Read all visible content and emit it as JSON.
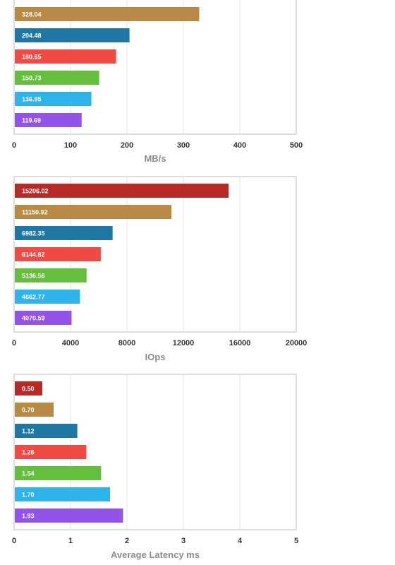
{
  "chart_data": [
    {
      "type": "bar",
      "orientation": "horizontal",
      "xlabel": "MB/s",
      "xlim": [
        0,
        500
      ],
      "xticks": [
        0,
        100,
        200,
        300,
        400,
        500
      ],
      "grid": true,
      "values": [
        328.04,
        204.48,
        180.65,
        150.73,
        136.95,
        119.69
      ],
      "labels": [
        "328.04",
        "204.48",
        "180.65",
        "150.73",
        "136.95",
        "119.69"
      ],
      "colors": [
        "#b88a44",
        "#1f77a4",
        "#f04a44",
        "#63bf3c",
        "#2db4ea",
        "#9353e9"
      ]
    },
    {
      "type": "bar",
      "orientation": "horizontal",
      "xlabel": "IOps",
      "xlim": [
        0,
        20000
      ],
      "xticks": [
        0,
        4000,
        8000,
        12000,
        16000,
        20000
      ],
      "grid": true,
      "values": [
        15206.02,
        11150.92,
        6982.35,
        6144.82,
        5136.58,
        4662.77,
        4070.59
      ],
      "labels": [
        "15206.02",
        "11150.92",
        "6982.35",
        "6144.82",
        "5136.58",
        "4662.77",
        "4070.59"
      ],
      "colors": [
        "#b72a25",
        "#b88a44",
        "#1f77a4",
        "#f04a44",
        "#63bf3c",
        "#2db4ea",
        "#9353e9"
      ]
    },
    {
      "type": "bar",
      "orientation": "horizontal",
      "xlabel": "Average Latency ms",
      "xlim": [
        0,
        5
      ],
      "xticks": [
        0,
        1,
        2,
        3,
        4,
        5
      ],
      "grid": true,
      "values": [
        0.5,
        0.7,
        1.12,
        1.28,
        1.54,
        1.7,
        1.93
      ],
      "labels": [
        "0.50",
        "0.70",
        "1.12",
        "1.28",
        "1.54",
        "1.70",
        "1.93"
      ],
      "colors": [
        "#b72a25",
        "#b88a44",
        "#1f77a4",
        "#f04a44",
        "#63bf3c",
        "#2db4ea",
        "#9353e9"
      ]
    }
  ]
}
